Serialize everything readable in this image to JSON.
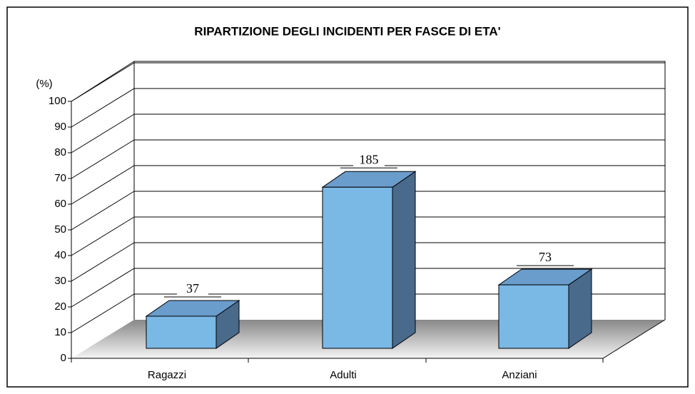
{
  "chart_data": {
    "type": "bar3d",
    "title": "RIPARTIZIONE DEGLI INCIDENTI PER FASCE DI ETA'",
    "y_label": "(%)",
    "categories": [
      "Ragazzi",
      "Adulti",
      "Anziani"
    ],
    "values": [
      12.5,
      62.7,
      24.7
    ],
    "counts": [
      37,
      185,
      73
    ],
    "color": "#7ab8e6",
    "ylim": [
      0,
      100
    ],
    "yticks": [
      0,
      10,
      20,
      30,
      40,
      50,
      60,
      70,
      80,
      90,
      100
    ],
    "grid": true
  }
}
